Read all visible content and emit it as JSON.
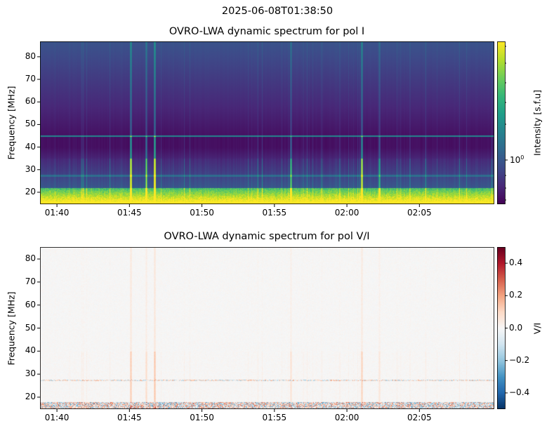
{
  "suptitle": "2025-06-08T01:38:50",
  "chart_data": [
    {
      "type": "heatmap",
      "title": "OVRO-LWA dynamic spectrum for pol I",
      "xlabel": "",
      "ylabel": "Frequency [MHz]",
      "xlim": [
        "01:38:50",
        "02:10:10"
      ],
      "ylim": [
        14.7,
        86.8
      ],
      "xticks": [
        "01:40",
        "01:45",
        "01:50",
        "01:55",
        "02:00",
        "02:05"
      ],
      "yticks": [
        20,
        30,
        40,
        50,
        60,
        70,
        80
      ],
      "colormap": "viridis",
      "colorbar": {
        "label": "Intensity [s.f.u]",
        "scale": "log",
        "tick_labels": [
          "10",
          "0"
        ],
        "tick_value": 1
      }
    },
    {
      "type": "heatmap",
      "title": "OVRO-LWA dynamic spectrum for pol V/I",
      "xlabel": "",
      "ylabel": "Frequency [MHz]",
      "xlim": [
        "01:38:50",
        "02:10:10"
      ],
      "ylim": [
        14.8,
        85.2
      ],
      "xticks": [
        "01:40",
        "01:45",
        "01:50",
        "01:55",
        "02:00",
        "02:05"
      ],
      "yticks": [
        20,
        30,
        40,
        50,
        60,
        70,
        80
      ],
      "colormap": "RdBu_r",
      "colorbar": {
        "label": "V/I",
        "scale": "linear",
        "range": [
          -0.5,
          0.5
        ],
        "ticks": [
          "0.4",
          "0.2",
          "0.0",
          "−0.2",
          "−0.4"
        ]
      }
    }
  ]
}
